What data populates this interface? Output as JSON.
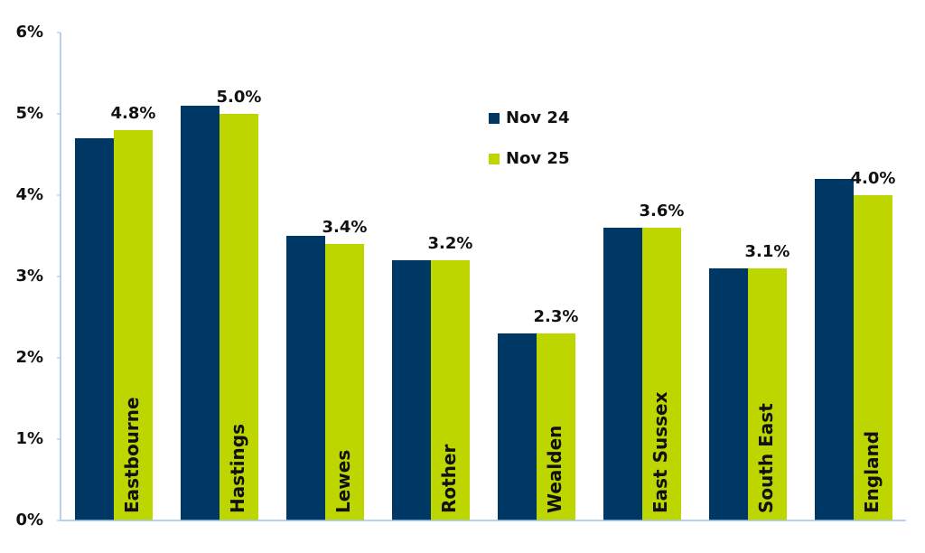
{
  "chart_data": {
    "type": "bar",
    "categories": [
      "Eastbourne",
      "Hastings",
      "Lewes",
      "Rother",
      "Wealden",
      "East Sussex",
      "South East",
      "England"
    ],
    "series": [
      {
        "name": "Nov 24",
        "color": "#003865",
        "values": [
          4.7,
          5.1,
          3.5,
          3.2,
          2.3,
          3.6,
          3.1,
          4.2
        ]
      },
      {
        "name": "Nov 25",
        "color": "#bed600",
        "values": [
          4.8,
          5.0,
          3.4,
          3.2,
          2.3,
          3.6,
          3.1,
          4.0
        ],
        "value_labels": [
          "4.8%",
          "5.0%",
          "3.4%",
          "3.2%",
          "2.3%",
          "3.6%",
          "3.1%",
          "4.0%"
        ]
      }
    ],
    "ylim": [
      0,
      6
    ],
    "yticks": [
      {
        "value": 0,
        "label": "0%"
      },
      {
        "value": 1,
        "label": "1%"
      },
      {
        "value": 2,
        "label": "2%"
      },
      {
        "value": 3,
        "label": "3%"
      },
      {
        "value": 4,
        "label": "4%"
      },
      {
        "value": 5,
        "label": "5%"
      },
      {
        "value": 6,
        "label": "6%"
      }
    ],
    "grid": false
  }
}
